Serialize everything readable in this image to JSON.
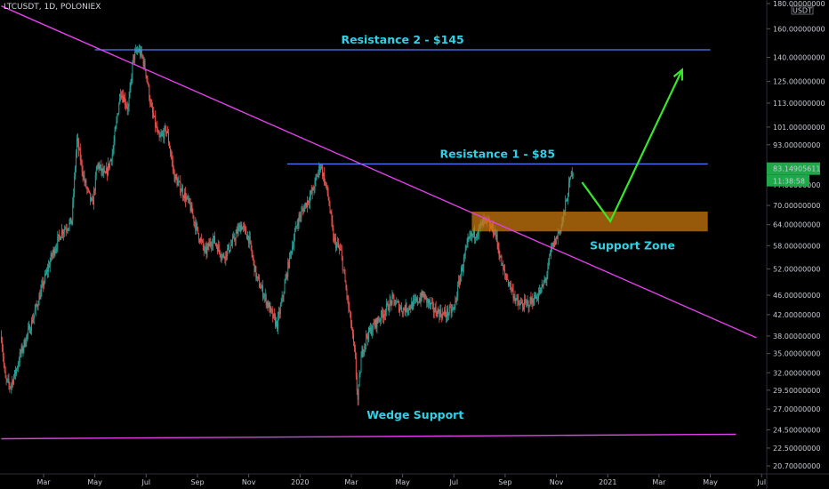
{
  "header": {
    "ticker": "LTCUSDT, 1D, POLONIEX"
  },
  "currency": "USDT",
  "price": {
    "current": "83.14905611",
    "countdown": "11:38:58",
    "tag_color": "#1fa84a"
  },
  "chart_data": {
    "type": "candlestick",
    "symbol": "LTCUSDT",
    "interval": "1D",
    "exchange": "POLONIEX",
    "y_scale": "log",
    "ylim": [
      20.7,
      180
    ],
    "y_ticks": [
      {
        "v": 180,
        "label": "180.00000000"
      },
      {
        "v": 160,
        "label": "160.00000000"
      },
      {
        "v": 140,
        "label": "140.00000000"
      },
      {
        "v": 125,
        "label": "125.00000000"
      },
      {
        "v": 113,
        "label": "113.00000000"
      },
      {
        "v": 101,
        "label": "101.00000000"
      },
      {
        "v": 93,
        "label": "93.00000000"
      },
      {
        "v": 77,
        "label": "77.00000000"
      },
      {
        "v": 70,
        "label": "70.00000000"
      },
      {
        "v": 64,
        "label": "64.00000000"
      },
      {
        "v": 58,
        "label": "58.00000000"
      },
      {
        "v": 52,
        "label": "52.00000000"
      },
      {
        "v": 46,
        "label": "46.00000000"
      },
      {
        "v": 42,
        "label": "42.00000000"
      },
      {
        "v": 38,
        "label": "38.00000000"
      },
      {
        "v": 35,
        "label": "35.00000000"
      },
      {
        "v": 32,
        "label": "32.00000000"
      },
      {
        "v": 29.5,
        "label": "29.50000000"
      },
      {
        "v": 27,
        "label": "27.00000000"
      },
      {
        "v": 24.5,
        "label": "24.50000000"
      },
      {
        "v": 22.5,
        "label": "22.50000000"
      },
      {
        "v": 20.7,
        "label": "20.70000000"
      }
    ],
    "x_ticks": [
      {
        "t": 0,
        "label": "Mar"
      },
      {
        "t": 2,
        "label": "May"
      },
      {
        "t": 4,
        "label": "Jul"
      },
      {
        "t": 6,
        "label": "Sep"
      },
      {
        "t": 8,
        "label": "Nov"
      },
      {
        "t": 10,
        "label": "2020"
      },
      {
        "t": 12,
        "label": "Mar"
      },
      {
        "t": 14,
        "label": "May"
      },
      {
        "t": 16,
        "label": "Jul"
      },
      {
        "t": 18,
        "label": "Sep"
      },
      {
        "t": 20,
        "label": "Nov"
      },
      {
        "t": 22,
        "label": "2021"
      },
      {
        "t": 24,
        "label": "Mar"
      },
      {
        "t": 26,
        "label": "May"
      },
      {
        "t": 28,
        "label": "Jul"
      }
    ],
    "price_path": [
      [
        -1.65,
        38
      ],
      [
        -1.5,
        31
      ],
      [
        -1.3,
        30
      ],
      [
        -1.1,
        32
      ],
      [
        -0.9,
        35
      ],
      [
        -0.5,
        40
      ],
      [
        -0.2,
        45
      ],
      [
        0.3,
        55
      ],
      [
        0.7,
        62
      ],
      [
        1.1,
        65
      ],
      [
        1.3,
        95
      ],
      [
        1.6,
        78
      ],
      [
        1.9,
        70
      ],
      [
        2.1,
        85
      ],
      [
        2.4,
        80
      ],
      [
        2.7,
        90
      ],
      [
        3.0,
        120
      ],
      [
        3.3,
        110
      ],
      [
        3.5,
        140
      ],
      [
        3.7,
        145
      ],
      [
        3.85,
        140
      ],
      [
        4.0,
        130
      ],
      [
        4.2,
        110
      ],
      [
        4.5,
        95
      ],
      [
        4.8,
        100
      ],
      [
        5.1,
        80
      ],
      [
        5.4,
        75
      ],
      [
        5.7,
        70
      ],
      [
        6.0,
        62
      ],
      [
        6.3,
        56
      ],
      [
        6.6,
        60
      ],
      [
        7.0,
        55
      ],
      [
        7.3,
        58
      ],
      [
        7.7,
        64
      ],
      [
        8.0,
        60
      ],
      [
        8.3,
        50
      ],
      [
        8.6,
        46
      ],
      [
        8.9,
        42
      ],
      [
        9.1,
        40
      ],
      [
        9.3,
        45
      ],
      [
        9.6,
        55
      ],
      [
        9.9,
        65
      ],
      [
        10.2,
        70
      ],
      [
        10.5,
        75
      ],
      [
        10.8,
        85
      ],
      [
        11.1,
        73
      ],
      [
        11.3,
        60
      ],
      [
        11.6,
        56
      ],
      [
        11.85,
        45
      ],
      [
        12.0,
        40
      ],
      [
        12.15,
        34
      ],
      [
        12.25,
        28
      ],
      [
        12.4,
        35
      ],
      [
        12.6,
        38
      ],
      [
        12.9,
        40
      ],
      [
        13.2,
        42
      ],
      [
        13.6,
        45
      ],
      [
        14.0,
        43
      ],
      [
        14.4,
        44
      ],
      [
        14.8,
        46
      ],
      [
        15.2,
        43
      ],
      [
        15.6,
        42
      ],
      [
        16.0,
        43
      ],
      [
        16.3,
        52
      ],
      [
        16.6,
        60
      ],
      [
        16.9,
        62
      ],
      [
        17.2,
        65
      ],
      [
        17.6,
        62
      ],
      [
        17.9,
        52
      ],
      [
        18.2,
        48
      ],
      [
        18.5,
        44
      ],
      [
        18.8,
        44
      ],
      [
        19.1,
        45
      ],
      [
        19.4,
        47
      ],
      [
        19.6,
        50
      ],
      [
        19.8,
        57
      ],
      [
        20.0,
        60
      ],
      [
        20.2,
        64
      ],
      [
        20.4,
        72
      ],
      [
        20.55,
        80
      ],
      [
        20.65,
        83
      ]
    ],
    "annotations": [
      {
        "text": "Resistance 2 - $145",
        "kind": "horizontal",
        "price": 145,
        "t_start": 2.0,
        "t_end": 26.0,
        "color": "#4f7cff"
      },
      {
        "text": "Resistance 1 - $85",
        "kind": "horizontal",
        "price": 85,
        "t_start": 9.5,
        "t_end": 25.9,
        "color": "#4f7cff"
      },
      {
        "text": "Support Zone",
        "kind": "zone",
        "price_low": 62,
        "price_high": 68,
        "t_start": 16.7,
        "t_end": 25.9,
        "color": "#c8780e"
      },
      {
        "text": "Wedge Support",
        "kind": "trendline",
        "from": [
          -1.65,
          23.5
        ],
        "to": [
          27.0,
          24.0
        ],
        "color": "#e040e8"
      },
      {
        "text": "",
        "kind": "trendline",
        "from": [
          -1.65,
          178
        ],
        "to": [
          27.8,
          37.7
        ],
        "color": "#e040e8"
      },
      {
        "text": "",
        "kind": "projection",
        "points": [
          [
            21.0,
            78
          ],
          [
            22.1,
            65
          ],
          [
            24.9,
            132
          ]
        ],
        "color": "#39e62b"
      }
    ]
  }
}
